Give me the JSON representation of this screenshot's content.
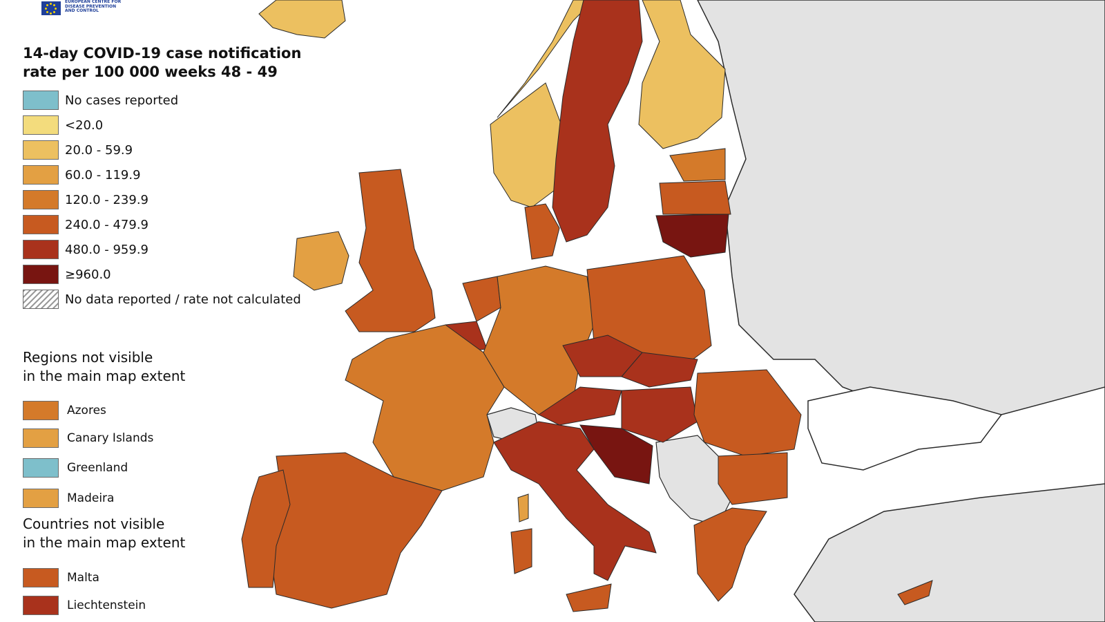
{
  "header": {
    "org_lines": [
      "EUROPEAN CENTRE FOR",
      "DISEASE PREVENTION",
      "AND CONTROL"
    ],
    "title_line1": "14-day COVID-19 case notification",
    "title_line2": "rate per 100 000 weeks 48 - 49"
  },
  "legend": [
    {
      "label": "No cases reported",
      "color": "#7ebfcb"
    },
    {
      "label": "<20.0",
      "color": "#f3dc7d"
    },
    {
      "label": "20.0 - 59.9",
      "color": "#ecc060"
    },
    {
      "label": "60.0 - 119.9",
      "color": "#e3a043"
    },
    {
      "label": "120.0 - 239.9",
      "color": "#d47a2a"
    },
    {
      "label": "240.0 - 479.9",
      "color": "#c75a20"
    },
    {
      "label": "480.0 - 959.9",
      "color": "#a9321c"
    },
    {
      "label": "≥960.0",
      "color": "#781511"
    },
    {
      "label": "No data reported / rate not calculated",
      "color": "hatch"
    }
  ],
  "regions_heading": [
    "Regions not visible",
    "in the main map extent"
  ],
  "regions": [
    {
      "label": "Azores",
      "color": "#d47a2a"
    },
    {
      "label": "Canary Islands",
      "color": "#e3a043"
    },
    {
      "label": "Greenland",
      "color": "#7ebfcb"
    },
    {
      "label": "Madeira",
      "color": "#e3a043"
    }
  ],
  "countries_heading": [
    "Countries not visible",
    "in the main map extent"
  ],
  "countries": [
    {
      "label": "Malta",
      "color": "#c75a20"
    },
    {
      "label": "Liechtenstein",
      "color": "#a9321c"
    }
  ],
  "map_colors": {
    "sea": "#ffffff",
    "non_eu": "#e3e3e3",
    "border": "#2a2a2a"
  }
}
